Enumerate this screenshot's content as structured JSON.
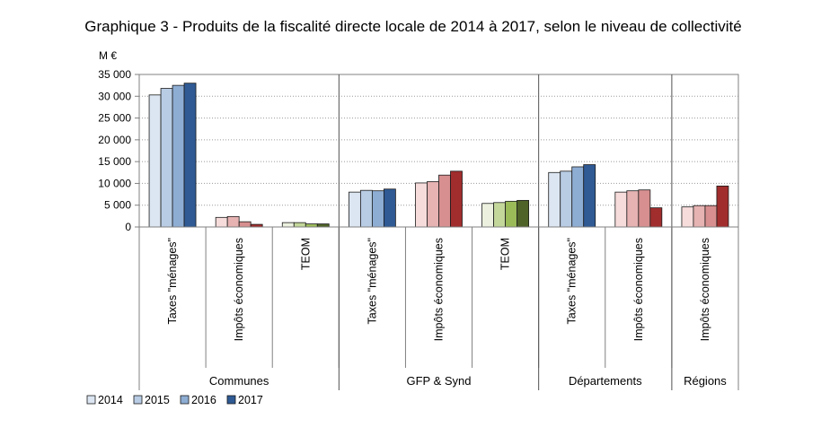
{
  "chart_data": {
    "type": "bar",
    "title": "Graphique 3 - Produits de la fiscalité directe locale de 2014 à 2017, selon le niveau de collectivité",
    "ylabel": "M €",
    "xlabel": "",
    "ylim": [
      0,
      35000
    ],
    "ytick_labels": [
      "0",
      "5 000",
      "10 000",
      "15 000",
      "20 000",
      "25 000",
      "30 000",
      "35 000"
    ],
    "yticks": [
      0,
      5000,
      10000,
      15000,
      20000,
      25000,
      30000,
      35000
    ],
    "grid": true,
    "legend": {
      "position": "bottom-left",
      "entries": [
        "2014",
        "2015",
        "2016",
        "2017"
      ]
    },
    "groups": [
      {
        "name": "Communes",
        "categories": [
          {
            "label": "Taxes \"ménages\"",
            "palette": "blue",
            "values": [
              30300,
              31800,
              32500,
              33000
            ]
          },
          {
            "label": "Impôts économiques",
            "palette": "red",
            "values": [
              2200,
              2400,
              1200,
              600
            ]
          },
          {
            "label": "TEOM",
            "palette": "green",
            "values": [
              1000,
              1000,
              700,
              700
            ]
          }
        ]
      },
      {
        "name": "GFP & Synd",
        "categories": [
          {
            "label": "Taxes \"ménages\"",
            "palette": "blue",
            "values": [
              8000,
              8400,
              8300,
              8700
            ]
          },
          {
            "label": "Impôts économiques",
            "palette": "red",
            "values": [
              10100,
              10400,
              11900,
              12800
            ]
          },
          {
            "label": "TEOM",
            "palette": "green",
            "values": [
              5400,
              5600,
              5900,
              6100
            ]
          }
        ]
      },
      {
        "name": "Départements",
        "categories": [
          {
            "label": "Taxes \"ménages\"",
            "palette": "blue",
            "values": [
              12500,
              12800,
              13800,
              14300
            ]
          },
          {
            "label": "Impôts économiques",
            "palette": "red",
            "values": [
              8000,
              8300,
              8500,
              4400
            ]
          }
        ]
      },
      {
        "name": "Régions",
        "categories": [
          {
            "label": "Impôts économiques",
            "palette": "red",
            "values": [
              4600,
              4900,
              4900,
              9400
            ]
          }
        ]
      }
    ],
    "palettes": {
      "blue": [
        "#dce6f2",
        "#b8cce4",
        "#8eadd3",
        "#2f5a94"
      ],
      "red": [
        "#f7dcdc",
        "#e6b2b2",
        "#d78f8f",
        "#a12d2d"
      ],
      "green": [
        "#ebf1de",
        "#c4d79b",
        "#9bbb59",
        "#4f6228"
      ]
    }
  }
}
